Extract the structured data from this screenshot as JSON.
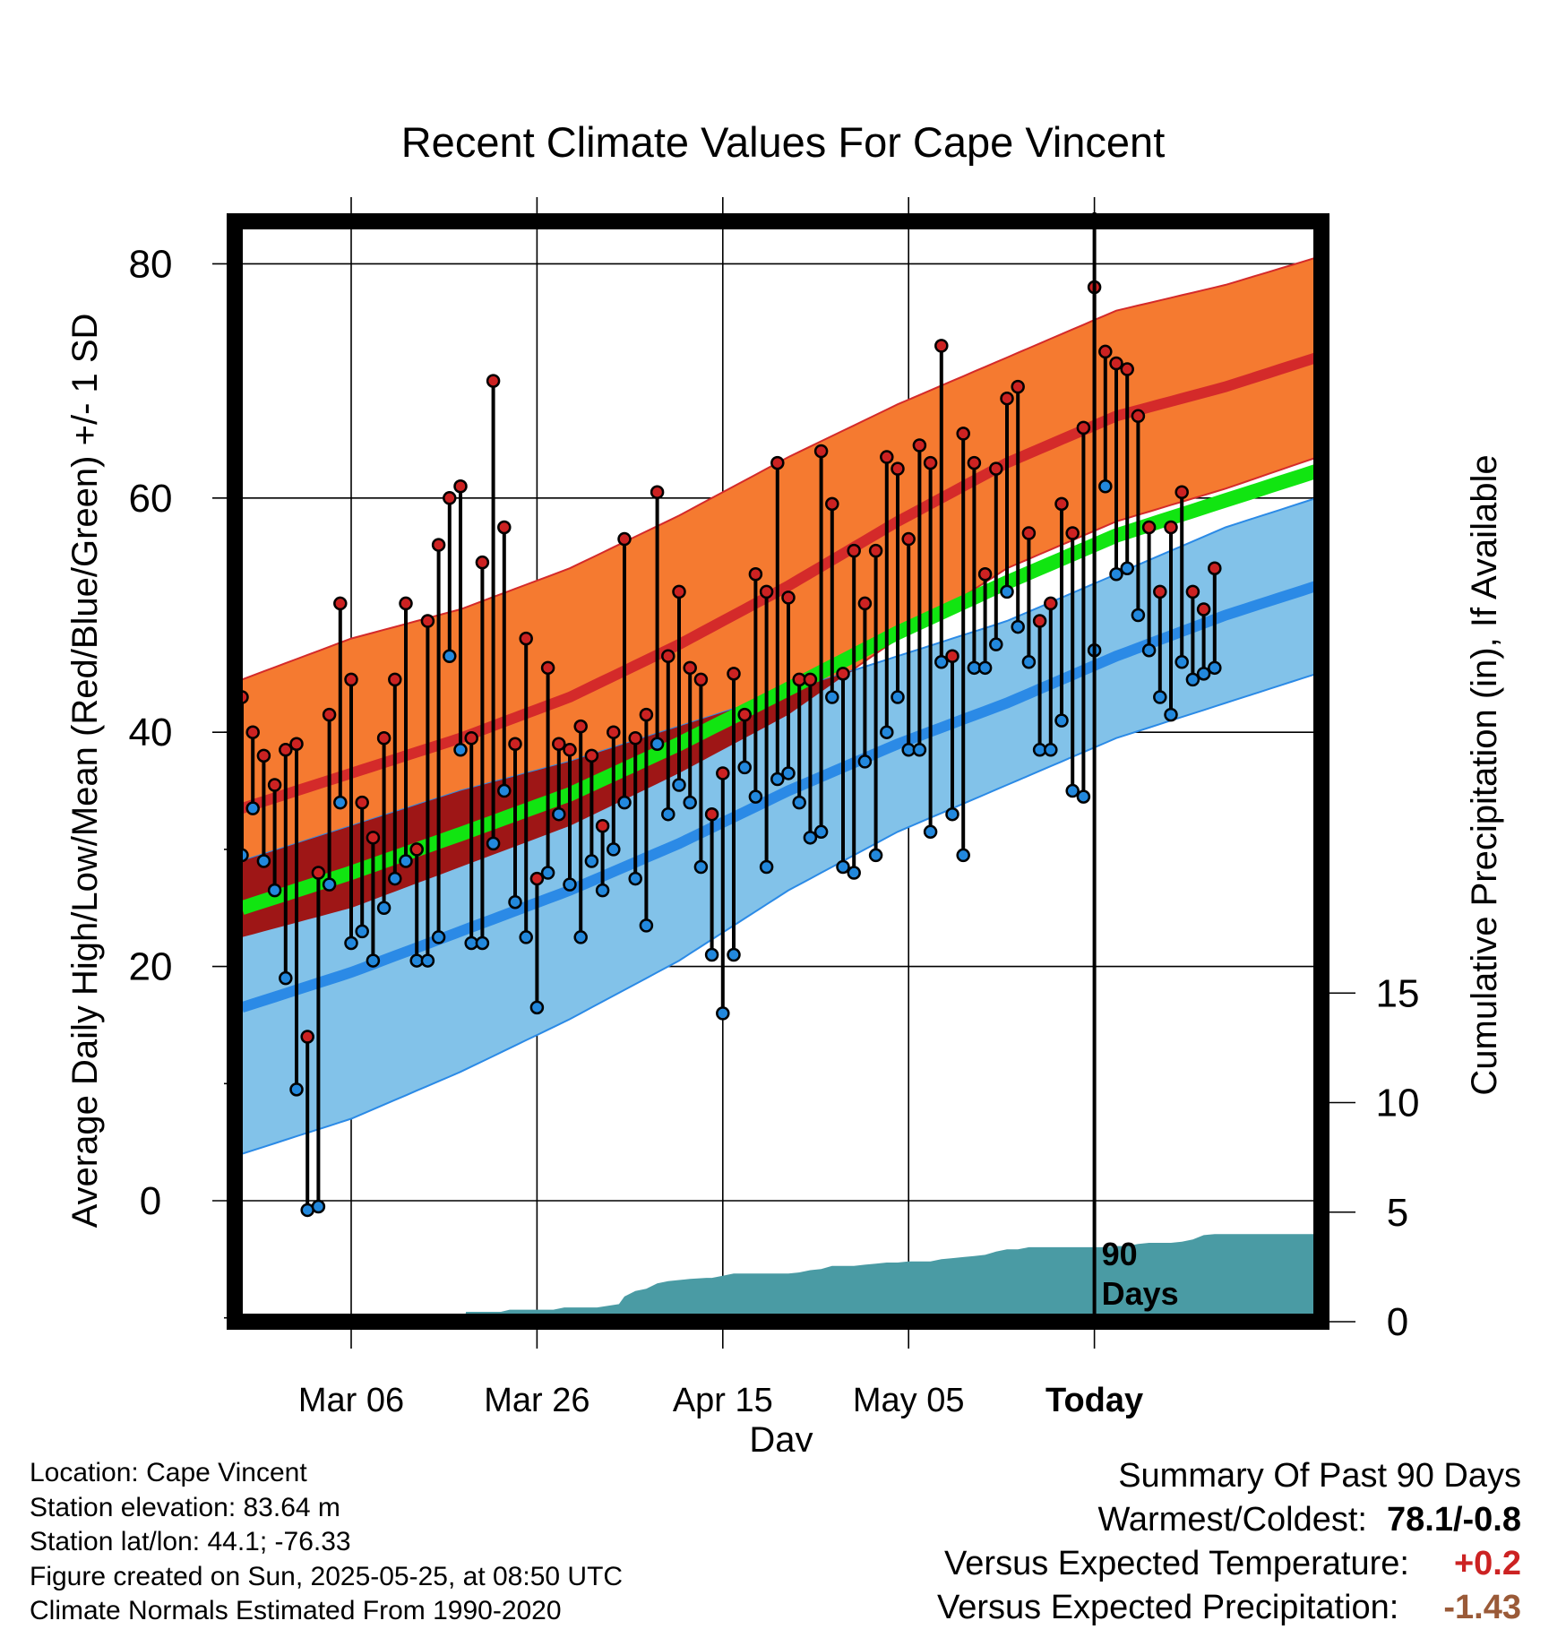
{
  "chart_data": {
    "type": "line",
    "title": "Recent Climate Values For Cape Vincent",
    "xlabel": "Day",
    "ylabel": "Average Daily High/Low/Mean (Red/Blue/Green) +/- 1 SD",
    "y2label": "Cumulative Precipitation (in), If Available",
    "ylim": [
      -10,
      85
    ],
    "y2lim": [
      0,
      20
    ],
    "yticks": [
      "0",
      "20",
      "40",
      "60",
      "80"
    ],
    "y2ticks": [
      "0",
      "5",
      "10",
      "15"
    ],
    "xticks": [
      "Mar 06",
      "Mar 26",
      "Apr 15",
      "May 05",
      "Today"
    ],
    "period_marker": "90\nDays",
    "grid": true,
    "colors": {
      "high": "#d42a2a",
      "high_band": "#f57a30",
      "low": "#2b8ae6",
      "low_band": "#82c2e9",
      "mean": "#11e511",
      "overlap": "#9e1616",
      "precip": "#4a9ba4",
      "high_dot": "#cc2222",
      "low_dot": "#2288dd"
    },
    "normals": {
      "x": [
        0,
        10,
        20,
        30,
        40,
        50,
        60,
        70,
        80,
        90,
        100
      ],
      "high_mean": [
        33.5,
        36.5,
        39.5,
        43.0,
        47.5,
        52.5,
        58.0,
        63.0,
        67.0,
        69.5,
        72.5
      ],
      "high_sd": [
        11.0,
        11.5,
        11.0,
        11.0,
        11.0,
        11.0,
        10.0,
        9.0,
        9.0,
        8.7,
        8.5
      ],
      "low_mean": [
        16.5,
        19.5,
        23.0,
        26.5,
        30.5,
        35.0,
        39.0,
        42.5,
        46.5,
        50.0,
        53.0
      ],
      "low_sd": [
        12.5,
        12.5,
        12.0,
        11.0,
        10.0,
        8.5,
        7.5,
        7.0,
        7.0,
        7.5,
        7.5
      ],
      "mean": [
        25.0,
        28.0,
        31.3,
        34.7,
        39.0,
        43.7,
        48.5,
        52.8,
        56.8,
        59.8,
        62.8
      ]
    },
    "series": [
      {
        "name": "High",
        "values": [
          43,
          40,
          38,
          35.5,
          38.5,
          39,
          14,
          28,
          41.5,
          51,
          44.5,
          34,
          31,
          39.5,
          44.5,
          51,
          30,
          49.5,
          56,
          60,
          61,
          39.5,
          54.5,
          70,
          57.5,
          39,
          48,
          27.5,
          45.5,
          39,
          38.5,
          40.5,
          38,
          32,
          40,
          56.5,
          39.5,
          41.5,
          60.5,
          46.5,
          52,
          45.5,
          44.5,
          33,
          36.5,
          45,
          41.5,
          53.5,
          52,
          63,
          51.5,
          44.5,
          44.5,
          64,
          59.5,
          45,
          55.5,
          51,
          55.5,
          63.5,
          62.5,
          56.5,
          64.5,
          63,
          73,
          46.5,
          65.5,
          63,
          53.5,
          62.5,
          68.5,
          69.5,
          57,
          49.5,
          51,
          59.5,
          57,
          66,
          78,
          72.5,
          71.5,
          71,
          67,
          57.5,
          52,
          57.5,
          60.5,
          52,
          50.5,
          54
        ]
      },
      {
        "name": "Low",
        "values": [
          29.5,
          33.5,
          29,
          26.5,
          19,
          9.5,
          -0.8,
          -0.5,
          27,
          34,
          22,
          23,
          20.5,
          25,
          27.5,
          29,
          20.5,
          20.5,
          22.5,
          46.5,
          38.5,
          22,
          22,
          30.5,
          35,
          25.5,
          22.5,
          16.5,
          28,
          33,
          27,
          22.5,
          29,
          26.5,
          30,
          34,
          27.5,
          23.5,
          39,
          33,
          35.5,
          34,
          28.5,
          21,
          16,
          21,
          37,
          34.5,
          28.5,
          36,
          36.5,
          34,
          31,
          31.5,
          43,
          28.5,
          28,
          37.5,
          29.5,
          40,
          43,
          38.5,
          38.5,
          31.5,
          46,
          33,
          29.5,
          45.5,
          45.5,
          47.5,
          52,
          49,
          46,
          38.5,
          38.5,
          41,
          35,
          34.5,
          47,
          61,
          53.5,
          54,
          50,
          47,
          43,
          41.5,
          46,
          44.5,
          45,
          45.5
        ]
      }
    ],
    "precip_cumulative": {
      "x": [
        0,
        8.9,
        9,
        10,
        10.9,
        11,
        20.4,
        20.5,
        23.7,
        24.5,
        28.5,
        29.5,
        32.5,
        34.5,
        35,
        36,
        37,
        38,
        39,
        40,
        41,
        42.5,
        43,
        44,
        45,
        46,
        47,
        48,
        49,
        50,
        51,
        52,
        53,
        54,
        55,
        56,
        57,
        58,
        59,
        60,
        61,
        62,
        63,
        64,
        65,
        66,
        67,
        68,
        69,
        70,
        71,
        72,
        73,
        74,
        75,
        76,
        77,
        78,
        79,
        80,
        81,
        82,
        83,
        84,
        85,
        86,
        87,
        88,
        89,
        90,
        100
      ],
      "values": [
        0,
        0,
        0.1,
        0.1,
        0.1,
        0.1,
        0.1,
        0.45,
        0.45,
        0.55,
        0.55,
        0.65,
        0.65,
        0.8,
        1.15,
        1.4,
        1.5,
        1.75,
        1.85,
        1.9,
        1.95,
        2.0,
        2.0,
        2.1,
        2.2,
        2.2,
        2.2,
        2.2,
        2.2,
        2.2,
        2.25,
        2.35,
        2.4,
        2.55,
        2.55,
        2.55,
        2.6,
        2.65,
        2.7,
        2.7,
        2.75,
        2.75,
        2.75,
        2.85,
        2.9,
        2.95,
        3.0,
        3.05,
        3.2,
        3.3,
        3.3,
        3.4,
        3.4,
        3.4,
        3.4,
        3.4,
        3.4,
        3.4,
        3.4,
        3.45,
        3.45,
        3.55,
        3.6,
        3.6,
        3.6,
        3.65,
        3.75,
        3.95,
        4.0,
        4.0,
        4.0
      ]
    }
  },
  "meta": {
    "location": "Location: Cape Vincent",
    "elevation": "Station elevation: 83.64 m",
    "latlon": "Station lat/lon: 44.1; -76.33",
    "created": "Figure created on Sun, 2025-05-25, at 08:50 UTC",
    "normals": "Climate Normals Estimated From 1990-2020"
  },
  "summary": {
    "heading": "Summary Of Past 90 Days",
    "warmest_label": "Warmest/Coldest:",
    "warmest_value": "78.1/-0.8",
    "temp_label": "Versus Expected Temperature:",
    "temp_value": "+0.2",
    "temp_color": "#cc2222",
    "precip_label": "Versus Expected Precipitation:",
    "precip_value": "-1.43",
    "precip_color": "#9a5a38"
  }
}
